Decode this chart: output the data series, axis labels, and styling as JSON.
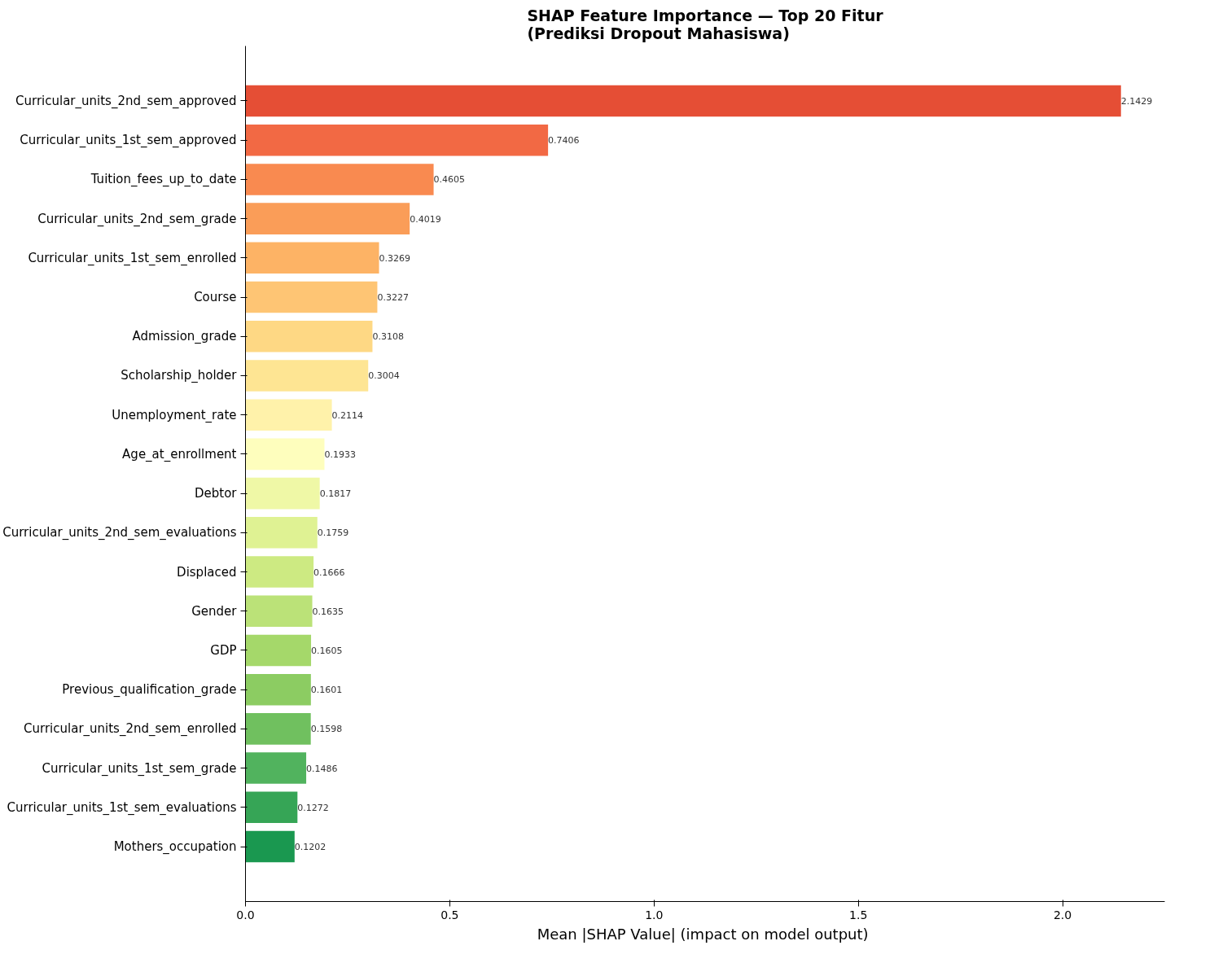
{
  "chart_data": {
    "type": "bar",
    "orientation": "horizontal",
    "title": "SHAP Feature Importance — Top 20 Fitur\n(Prediksi Dropout Mahasiswa)",
    "xlabel": "Mean |SHAP Value|  (impact on model output)",
    "categories": [
      "Curricular_units_2nd_sem_approved",
      "Curricular_units_1st_sem_approved",
      "Tuition_fees_up_to_date",
      "Curricular_units_2nd_sem_grade",
      "Curricular_units_1st_sem_enrolled",
      "Course",
      "Admission_grade",
      "Scholarship_holder",
      "Unemployment_rate",
      "Age_at_enrollment",
      "Debtor",
      "Curricular_units_2nd_sem_evaluations",
      "Displaced",
      "Gender",
      "GDP",
      "Previous_qualification_grade",
      "Curricular_units_2nd_sem_enrolled",
      "Curricular_units_1st_sem_grade",
      "Curricular_units_1st_sem_evaluations",
      "Mothers_occupation"
    ],
    "values": [
      2.1429,
      0.7406,
      0.4605,
      0.4019,
      0.3269,
      0.3227,
      0.3108,
      0.3004,
      0.2114,
      0.1933,
      0.1817,
      0.1759,
      0.1666,
      0.1635,
      0.1605,
      0.1601,
      0.1598,
      0.1486,
      0.1272,
      0.1202
    ],
    "colors": [
      "#e54e35",
      "#f26944",
      "#f98a50",
      "#fa9d58",
      "#fdb365",
      "#fec574",
      "#fed884",
      "#fee593",
      "#fff2aa",
      "#fefebd",
      "#eff8a6",
      "#dff293",
      "#cdea82",
      "#bbe278",
      "#a5d86a",
      "#8ccc62",
      "#70c05f",
      "#51b35e",
      "#36a556",
      "#1a9850"
    ],
    "xlim": [
      0,
      2.25
    ],
    "xticks": [
      {
        "value": 0,
        "label": "0.0"
      },
      {
        "value": 0.5,
        "label": "0.5"
      },
      {
        "value": 1,
        "label": "1.0"
      },
      {
        "value": 1.5,
        "label": "1.5"
      },
      {
        "value": 2,
        "label": "2.0"
      }
    ],
    "data_labels": true,
    "grid": false
  }
}
